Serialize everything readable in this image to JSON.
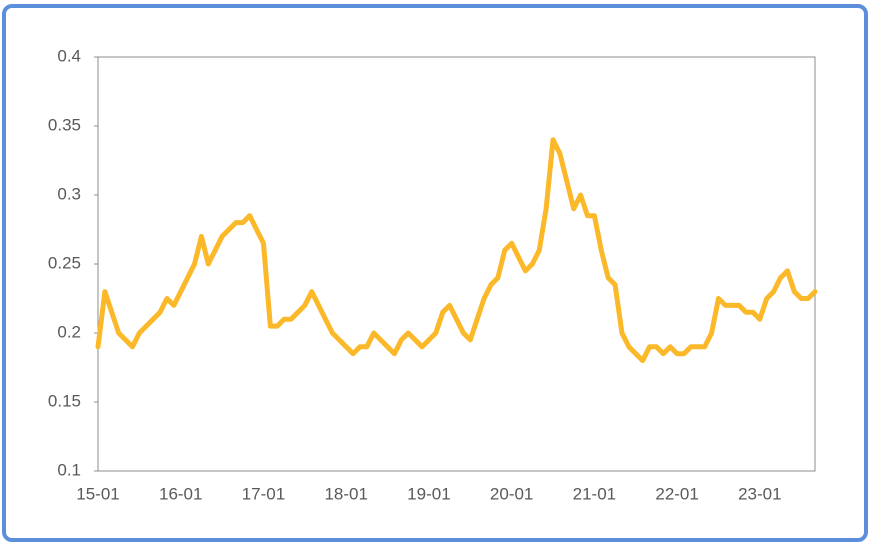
{
  "chart_data": {
    "type": "line",
    "categories": [
      "15-01",
      null,
      null,
      null,
      null,
      null,
      null,
      null,
      null,
      null,
      null,
      null,
      "16-01",
      null,
      null,
      null,
      null,
      null,
      null,
      null,
      null,
      null,
      null,
      null,
      "17-01",
      null,
      null,
      null,
      null,
      null,
      null,
      null,
      null,
      null,
      null,
      null,
      "18-01",
      null,
      null,
      null,
      null,
      null,
      null,
      null,
      null,
      null,
      null,
      null,
      "19-01",
      null,
      null,
      null,
      null,
      null,
      null,
      null,
      null,
      null,
      null,
      null,
      "20-01",
      null,
      null,
      null,
      null,
      null,
      null,
      null,
      null,
      null,
      null,
      null,
      "21-01",
      null,
      null,
      null,
      null,
      null,
      null,
      null,
      null,
      null,
      null,
      null,
      "22-01",
      null,
      null,
      null,
      null,
      null,
      null,
      null,
      null,
      null,
      null,
      null,
      "23-01",
      null,
      null,
      null,
      null,
      null,
      null,
      null,
      null
    ],
    "values": [
      0.19,
      0.23,
      0.215,
      0.2,
      0.195,
      0.19,
      0.2,
      0.205,
      0.21,
      0.215,
      0.225,
      0.22,
      0.23,
      0.24,
      0.25,
      0.27,
      0.25,
      0.26,
      0.27,
      0.275,
      0.28,
      0.28,
      0.285,
      0.275,
      0.265,
      0.205,
      0.205,
      0.21,
      0.21,
      0.215,
      0.22,
      0.23,
      0.22,
      0.21,
      0.2,
      0.195,
      0.19,
      0.185,
      0.19,
      0.19,
      0.2,
      0.195,
      0.19,
      0.185,
      0.195,
      0.2,
      0.195,
      0.19,
      0.195,
      0.2,
      0.215,
      0.22,
      0.21,
      0.2,
      0.195,
      0.21,
      0.225,
      0.235,
      0.24,
      0.26,
      0.265,
      0.255,
      0.245,
      0.25,
      0.26,
      0.29,
      0.34,
      0.33,
      0.31,
      0.29,
      0.3,
      0.285,
      0.285,
      0.26,
      0.24,
      0.235,
      0.2,
      0.19,
      0.185,
      0.18,
      0.19,
      0.19,
      0.185,
      0.19,
      0.185,
      0.185,
      0.19,
      0.19,
      0.19,
      0.2,
      0.225,
      0.22,
      0.22,
      0.22,
      0.215,
      0.215,
      0.21,
      0.225,
      0.23,
      0.24,
      0.245,
      0.23,
      0.225,
      0.225,
      0.23
    ],
    "color": "#fbb829",
    "ylim": [
      0.1,
      0.4
    ],
    "yticks": [
      0.1,
      0.15,
      0.2,
      0.25,
      0.3,
      0.35,
      0.4
    ]
  }
}
